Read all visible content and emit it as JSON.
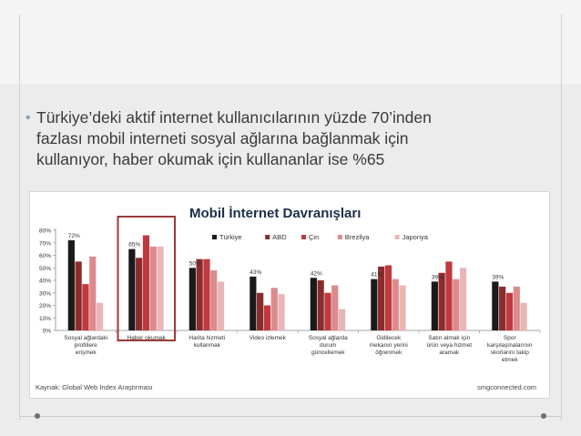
{
  "slide": {
    "bullet_lines": [
      "Türkiye’deki aktif internet kullanıcılarının yüzde 70’inden",
      "fazlası mobil interneti sosyal ağlarına bağlanmak için",
      "kullanıyor, haber okumak için kullananlar ise %65"
    ],
    "bullet_glyph": "•"
  },
  "chart_data": {
    "type": "bar",
    "title": "Mobil İnternet Davranışları",
    "categories": [
      [
        "Sosyal ağlardaki",
        "profillere",
        "erişmek"
      ],
      [
        "Haber okumak"
      ],
      [
        "Harita hizmeti",
        "kullanmak"
      ],
      [
        "Video izlemek"
      ],
      [
        "Sosyal ağlarda",
        "durum",
        "güncellemek"
      ],
      [
        "Gidilecek",
        "mekanın yerini",
        "öğrenmek"
      ],
      [
        "Satın almak için",
        "ürün veya hizmet",
        "aramak"
      ],
      [
        "Spor",
        "karşılaşmalarının",
        "skorlarını takip",
        "etmek"
      ]
    ],
    "series": [
      {
        "name": "Türkiye",
        "color": "#1a1a1a",
        "values": [
          72,
          65,
          50,
          43,
          42,
          41,
          39,
          39
        ]
      },
      {
        "name": "ABD",
        "color": "#8b2c2c",
        "values": [
          55,
          58,
          57,
          30,
          40,
          51,
          46,
          35
        ]
      },
      {
        "name": "Çin",
        "color": "#c0393e",
        "values": [
          37,
          76,
          57,
          20,
          30,
          52,
          55,
          30
        ]
      },
      {
        "name": "Brezilya",
        "color": "#dc8a8c",
        "values": [
          59,
          67,
          48,
          34,
          36,
          41,
          41,
          35
        ]
      },
      {
        "name": "Japonya",
        "color": "#e9b6b8",
        "values": [
          22,
          67,
          39,
          29,
          17,
          36,
          50,
          22
        ]
      }
    ],
    "data_labels": [
      "72%",
      "65%",
      "50%",
      "43%",
      "42%",
      "41%",
      "39%",
      "39%"
    ],
    "y_ticks": [
      "0%",
      "10%",
      "20%",
      "30%",
      "40%",
      "50%",
      "60%",
      "70%",
      "80%"
    ],
    "ylim": [
      0,
      80
    ],
    "highlighted_category_index": 1,
    "highlight_color": "#9c3a3a",
    "legend_position": "top",
    "source_text": "Kaynak: Global Web Index Araştırması",
    "watermark_text": "smgconnected.com"
  }
}
